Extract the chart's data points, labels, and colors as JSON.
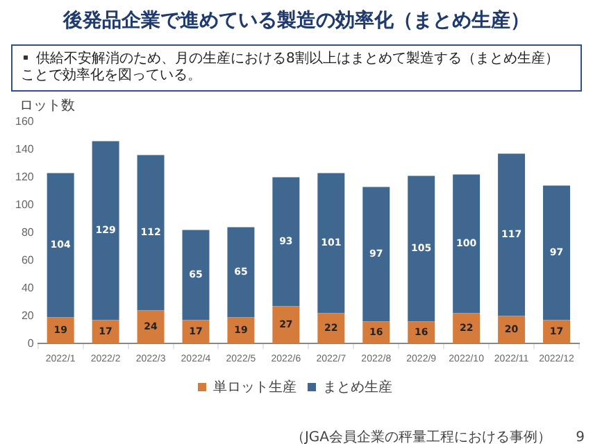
{
  "chart_data": {
    "type": "bar",
    "title": "後発品企業で進めている製造の効率化（まとめ生産）",
    "subtitle": "供給不安解消のため、月の生産における8割以上はまとめて製造する（まとめ生産）ことで効率化を図っている。",
    "ylabel": "ロット数",
    "categories": [
      "2022/1",
      "2022/2",
      "2022/3",
      "2022/4",
      "2022/5",
      "2022/6",
      "2022/7",
      "2022/8",
      "2022/9",
      "2022/10",
      "2022/11",
      "2022/12"
    ],
    "series": [
      {
        "name": "単ロット生産",
        "color": "#d57b3c",
        "values": [
          19,
          17,
          24,
          17,
          19,
          27,
          22,
          16,
          16,
          22,
          20,
          17
        ]
      },
      {
        "name": "まとめ生産",
        "color": "#3f6790",
        "values": [
          104,
          129,
          112,
          65,
          65,
          93,
          101,
          97,
          105,
          100,
          117,
          97
        ]
      }
    ],
    "stacked": true,
    "ylim": [
      0,
      160
    ],
    "yticks": [
      0,
      20,
      40,
      60,
      80,
      100,
      120,
      140,
      160
    ],
    "grid": false,
    "legend": "bottom",
    "data_labels": true,
    "annotations": [
      "（JGA会員企業の秤量工程における事例）",
      "9"
    ]
  }
}
